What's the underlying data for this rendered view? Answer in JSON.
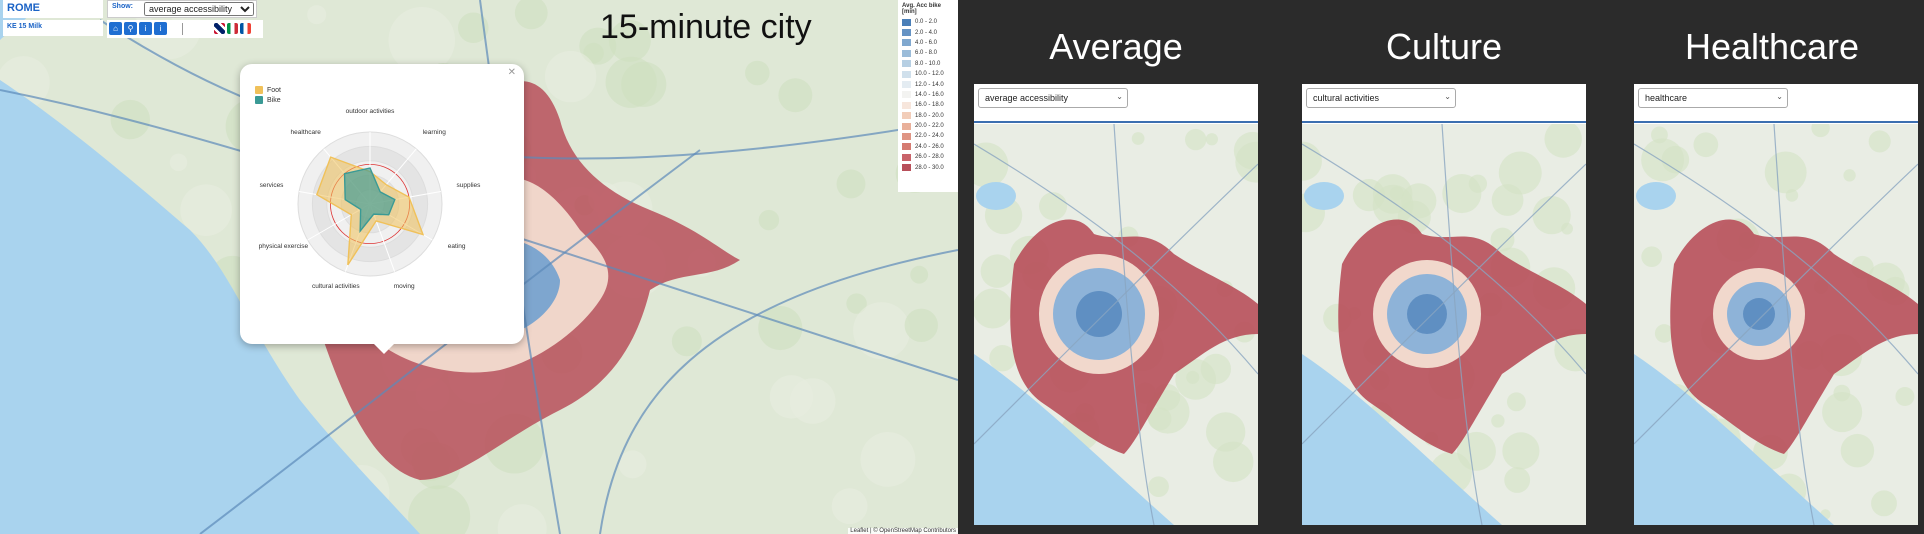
{
  "main_map": {
    "city": "ROME",
    "subtitle": "KE 15 Milk",
    "show_label": "Show:",
    "show_value": "average accessibility",
    "title": "15-minute city",
    "attribution": "Leaflet | © OpenStreetMap Contributors",
    "legend": {
      "title": "Avg. Acc bike [min]",
      "entries": [
        {
          "label": "0.0 - 2.0",
          "color": "#4a7fb8"
        },
        {
          "label": "2.0 - 4.0",
          "color": "#6593c4"
        },
        {
          "label": "4.0 - 6.0",
          "color": "#80a8cf"
        },
        {
          "label": "6.0 - 8.0",
          "color": "#9bbcd9"
        },
        {
          "label": "8.0 - 10.0",
          "color": "#b6cfe3"
        },
        {
          "label": "10.0 - 12.0",
          "color": "#d0e0ec"
        },
        {
          "label": "12.0 - 14.0",
          "color": "#e4ecf2"
        },
        {
          "label": "14.0 - 16.0",
          "color": "#f3f3f1"
        },
        {
          "label": "16.0 - 18.0",
          "color": "#f7e6dc"
        },
        {
          "label": "18.0 - 20.0",
          "color": "#f2cdb9"
        },
        {
          "label": "20.0 - 22.0",
          "color": "#e9b09a"
        },
        {
          "label": "22.0 - 24.0",
          "color": "#df9584"
        },
        {
          "label": "24.0 - 26.0",
          "color": "#d57b71"
        },
        {
          "label": "26.0 - 28.0",
          "color": "#c9636a"
        },
        {
          "label": "28.0 - 30.0",
          "color": "#b84f5a"
        }
      ]
    },
    "colors": {
      "red": "#b84f5a",
      "blue": "#4a7fb8",
      "water": "#a9d3ee",
      "land": "#dfe8d6"
    }
  },
  "radar": {
    "legend": [
      {
        "label": "Foot",
        "color": "#f0c15a"
      },
      {
        "label": "Bike",
        "color": "#3a9a95"
      }
    ],
    "axes": [
      "outdoor activities",
      "learning",
      "supplies",
      "eating",
      "moving",
      "cultural activities",
      "physical exercise",
      "services",
      "healthcare"
    ],
    "series": [
      {
        "name": "Foot",
        "values": [
          0.45,
          0.35,
          0.55,
          0.85,
          0.25,
          0.9,
          0.3,
          0.75,
          0.85
        ]
      },
      {
        "name": "Bike",
        "values": [
          0.5,
          0.22,
          0.35,
          0.3,
          0.15,
          0.4,
          0.15,
          0.35,
          0.55
        ]
      }
    ]
  },
  "panels": [
    {
      "title": "Average",
      "selector": "average accessibility"
    },
    {
      "title": "Culture",
      "selector": "cultural activities"
    },
    {
      "title": "Healthcare",
      "selector": "healthcare"
    }
  ]
}
